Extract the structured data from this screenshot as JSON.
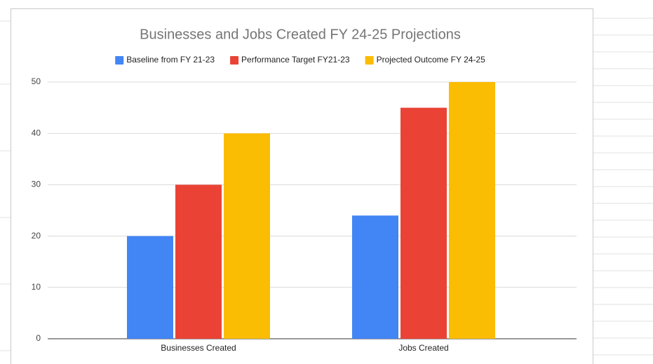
{
  "chart_data": {
    "type": "bar",
    "title": "Businesses and Jobs Created FY 24-25 Projections",
    "categories": [
      "Businesses Created",
      "Jobs Created"
    ],
    "series": [
      {
        "name": "Baseline from FY 21-23",
        "color": "#4285f4",
        "values": [
          20,
          24
        ]
      },
      {
        "name": "Performance Target FY21-23",
        "color": "#ea4335",
        "values": [
          30,
          45
        ]
      },
      {
        "name": "Projected Outcome FY 24-25",
        "color": "#fbbc04",
        "values": [
          40,
          50
        ]
      }
    ],
    "ylim": [
      0,
      50
    ],
    "yticks": [
      0,
      10,
      20,
      30,
      40,
      50
    ],
    "grid": true,
    "legend": "top"
  }
}
